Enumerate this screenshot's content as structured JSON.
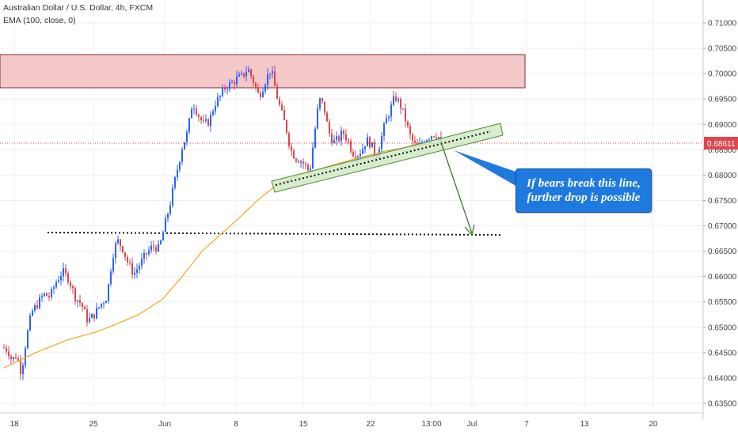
{
  "header": {
    "title": "Australian Dollar / U.S. Dollar, 4h, FXCM",
    "indicator": "EMA (100, close, 0)"
  },
  "annotation": {
    "line1": "If bears break this line,",
    "line2": "further drop is possible"
  },
  "colors": {
    "up": "#2962ff",
    "down": "#e0464e",
    "ema": "#f5a623",
    "resistance_fill": "#f4c7c9",
    "resistance_stroke": "#7a2d31",
    "channel_fill": "#cde8c1",
    "channel_stroke": "#4d8a3a",
    "arrow": "#3a7a2a",
    "price_line": "#e0464e",
    "callout": "#1f7ae0"
  },
  "chart_data": {
    "type": "candlestick",
    "symbol": "AUDUSD",
    "current_price": "0.68611",
    "y_ticks": [
      "0.71000",
      "0.70500",
      "0.70000",
      "0.69500",
      "0.69000",
      "0.68500",
      "0.68000",
      "0.67500",
      "0.67000",
      "0.66500",
      "0.66000",
      "0.65500",
      "0.65000",
      "0.64500",
      "0.64000",
      "0.63500"
    ],
    "x_ticks": [
      "18",
      "25",
      "Jun",
      "8",
      "15",
      "22",
      "13:00",
      "Jul",
      "7",
      "13",
      "20"
    ],
    "ylim": [
      0.6345,
      0.713
    ],
    "resistance_zone": [
      0.6972,
      0.7034
    ],
    "support_level": 0.6683,
    "path": [
      [
        0,
        0.646
      ],
      [
        5,
        0.6455
      ],
      [
        10,
        0.6435
      ],
      [
        16,
        0.6445
      ],
      [
        22,
        0.641
      ],
      [
        28,
        0.6475
      ],
      [
        35,
        0.653
      ],
      [
        42,
        0.6545
      ],
      [
        50,
        0.6565
      ],
      [
        58,
        0.656
      ],
      [
        66,
        0.659
      ],
      [
        74,
        0.661
      ],
      [
        82,
        0.6595
      ],
      [
        90,
        0.656
      ],
      [
        98,
        0.6545
      ],
      [
        106,
        0.6512
      ],
      [
        114,
        0.6525
      ],
      [
        122,
        0.6545
      ],
      [
        130,
        0.656
      ],
      [
        137,
        0.664
      ],
      [
        143,
        0.6672
      ],
      [
        150,
        0.6655
      ],
      [
        157,
        0.6625
      ],
      [
        164,
        0.6605
      ],
      [
        172,
        0.6625
      ],
      [
        180,
        0.6645
      ],
      [
        188,
        0.666
      ],
      [
        196,
        0.6655
      ],
      [
        203,
        0.67
      ],
      [
        210,
        0.6745
      ],
      [
        218,
        0.6805
      ],
      [
        225,
        0.6855
      ],
      [
        232,
        0.6885
      ],
      [
        238,
        0.6945
      ],
      [
        245,
        0.692
      ],
      [
        252,
        0.69
      ],
      [
        259,
        0.6905
      ],
      [
        266,
        0.694
      ],
      [
        273,
        0.6955
      ],
      [
        280,
        0.6975
      ],
      [
        287,
        0.698
      ],
      [
        294,
        0.699
      ],
      [
        301,
        0.6995
      ],
      [
        308,
        0.701
      ],
      [
        315,
        0.6985
      ],
      [
        322,
        0.6955
      ],
      [
        330,
        0.6985
      ],
      [
        337,
        0.701
      ],
      [
        344,
        0.696
      ],
      [
        350,
        0.6925
      ],
      [
        356,
        0.6895
      ],
      [
        362,
        0.685
      ],
      [
        368,
        0.6835
      ],
      [
        374,
        0.683
      ],
      [
        380,
        0.682
      ],
      [
        386,
        0.6805
      ],
      [
        392,
        0.688
      ],
      [
        398,
        0.695
      ],
      [
        404,
        0.6935
      ],
      [
        410,
        0.6885
      ],
      [
        416,
        0.6865
      ],
      [
        422,
        0.687
      ],
      [
        428,
        0.6885
      ],
      [
        434,
        0.687
      ],
      [
        440,
        0.6845
      ],
      [
        446,
        0.684
      ],
      [
        452,
        0.685
      ],
      [
        458,
        0.687
      ],
      [
        464,
        0.686
      ],
      [
        470,
        0.6835
      ],
      [
        476,
        0.687
      ],
      [
        482,
        0.6905
      ],
      [
        488,
        0.693
      ],
      [
        494,
        0.6955
      ],
      [
        500,
        0.694
      ],
      [
        506,
        0.6915
      ],
      [
        512,
        0.688
      ],
      [
        518,
        0.686
      ],
      [
        524,
        0.6855
      ],
      [
        530,
        0.687
      ],
      [
        536,
        0.6875
      ],
      [
        542,
        0.6882
      ],
      [
        548,
        0.6878
      ],
      [
        553,
        0.6861
      ]
    ],
    "ema_path": [
      [
        0,
        0.642
      ],
      [
        40,
        0.645
      ],
      [
        80,
        0.6475
      ],
      [
        115,
        0.649
      ],
      [
        140,
        0.6505
      ],
      [
        170,
        0.6525
      ],
      [
        200,
        0.6555
      ],
      [
        225,
        0.66
      ],
      [
        250,
        0.665
      ],
      [
        275,
        0.6685
      ],
      [
        300,
        0.672
      ],
      [
        320,
        0.675
      ],
      [
        340,
        0.6775
      ],
      [
        365,
        0.6795
      ],
      [
        390,
        0.6808
      ],
      [
        420,
        0.6822
      ],
      [
        450,
        0.6835
      ],
      [
        480,
        0.6847
      ],
      [
        510,
        0.6855
      ],
      [
        535,
        0.6861
      ],
      [
        553,
        0.6864
      ]
    ]
  }
}
